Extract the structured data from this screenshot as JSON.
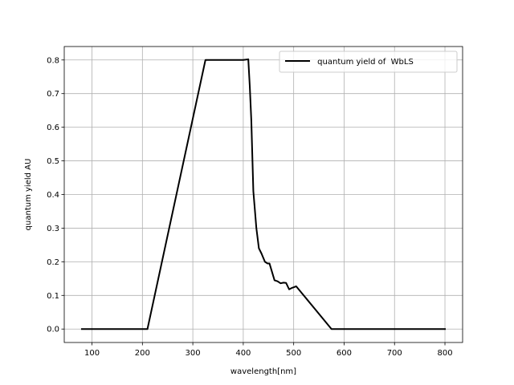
{
  "chart_data": {
    "type": "line",
    "title": "",
    "xlabel": "wavelength[nm]",
    "ylabel": "quantum yield AU",
    "xlim": [
      45,
      835
    ],
    "ylim": [
      -0.04,
      0.84
    ],
    "xticks": [
      100,
      200,
      300,
      400,
      500,
      600,
      700,
      800
    ],
    "yticks": [
      0.0,
      0.1,
      0.2,
      0.3,
      0.4,
      0.5,
      0.6,
      0.7,
      0.8
    ],
    "xtick_labels": [
      "100",
      "200",
      "300",
      "400",
      "500",
      "600",
      "700",
      "800"
    ],
    "ytick_labels": [
      "0.0",
      "0.1",
      "0.2",
      "0.3",
      "0.4",
      "0.5",
      "0.6",
      "0.7",
      "0.8"
    ],
    "grid": true,
    "legend_position": "top-right",
    "series": [
      {
        "name": " quantum yield of  WbLS",
        "color": "#000000",
        "x": [
          80,
          210,
          325,
          400,
          410,
          413,
          416,
          420,
          426,
          431,
          436,
          443,
          448,
          452,
          457,
          462,
          468,
          474,
          480,
          485,
          491,
          496,
          500,
          505,
          575,
          800
        ],
        "y": [
          0.0,
          0.0,
          0.8,
          0.8,
          0.802,
          0.72,
          0.62,
          0.41,
          0.3,
          0.24,
          0.225,
          0.2,
          0.195,
          0.195,
          0.17,
          0.145,
          0.142,
          0.136,
          0.138,
          0.137,
          0.118,
          0.122,
          0.124,
          0.127,
          0.0,
          0.0
        ]
      }
    ]
  }
}
